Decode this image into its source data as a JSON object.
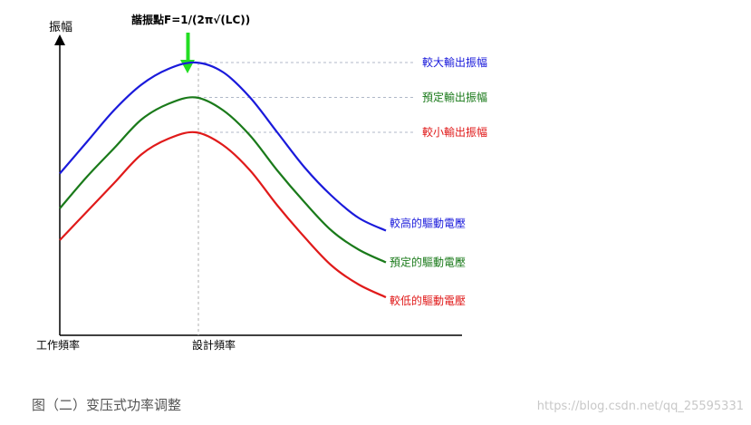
{
  "chart_data": {
    "type": "line",
    "title": "諧振點F=1/(2π√(LC))",
    "ylabel": "振幅",
    "xlabel": "工作頻率",
    "x_marker_label": "設計頻率",
    "x": [
      0,
      1,
      2,
      3,
      4,
      5,
      6,
      7,
      8,
      9,
      10,
      11,
      12
    ],
    "xlim": [
      0,
      15
    ],
    "ylim": [
      0,
      10
    ],
    "resonance_x": 5.1,
    "series": [
      {
        "name": "較高的驅動電壓",
        "color": "#1a1adb",
        "values": [
          5.1,
          6.1,
          7.1,
          7.9,
          8.4,
          8.6,
          8.3,
          7.5,
          6.4,
          5.3,
          4.4,
          3.7,
          3.3
        ],
        "level_label": "較大輸出振幅",
        "level_value": 8.6
      },
      {
        "name": "預定的驅動電壓",
        "color": "#1a7a1a",
        "values": [
          4.0,
          5.0,
          5.9,
          6.8,
          7.3,
          7.5,
          7.1,
          6.3,
          5.2,
          4.2,
          3.3,
          2.7,
          2.3
        ],
        "level_label": "預定輸出振幅",
        "level_value": 7.5
      },
      {
        "name": "較低的驅動電壓",
        "color": "#e01a1a",
        "values": [
          3.0,
          3.9,
          4.8,
          5.7,
          6.2,
          6.4,
          6.0,
          5.2,
          4.1,
          3.1,
          2.2,
          1.6,
          1.2
        ],
        "level_label": "較小輸出振幅",
        "level_value": 6.4
      }
    ]
  },
  "caption": "图（二）变压式功率调整",
  "watermark": "https://blog.csdn.net/qq_25595331"
}
